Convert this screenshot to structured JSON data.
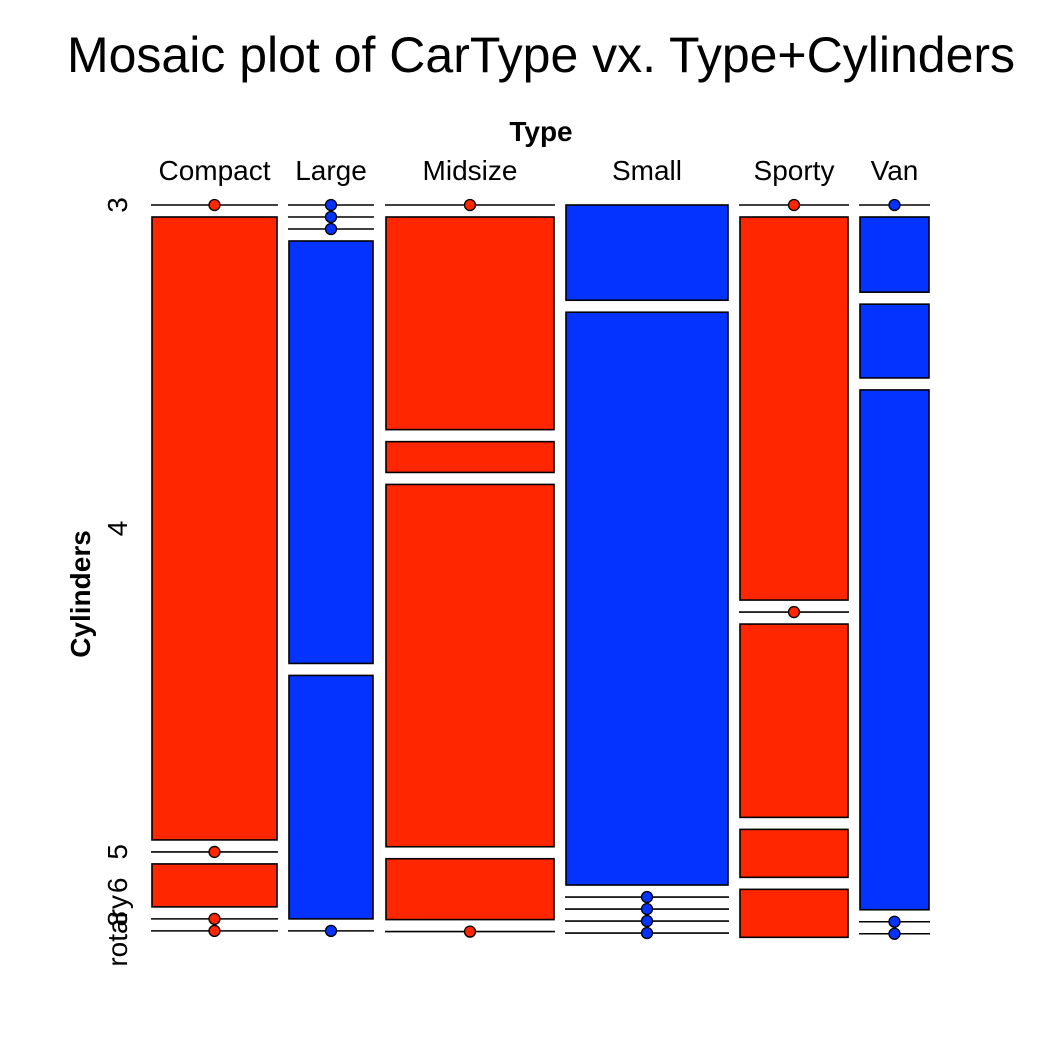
{
  "chart_data": {
    "type": "mosaic",
    "title": "Mosaic plot of CarType vx. Type+Cylinders",
    "xlabel": "Type",
    "ylabel": "Cylinders",
    "colors": {
      "red": "#ff2600",
      "blue": "#0433ff"
    },
    "types": [
      {
        "name": "Compact",
        "color": "red",
        "cells": [
          {
            "cyl": "3",
            "value": 0
          },
          {
            "cyl": "4",
            "value": 0.87
          },
          {
            "cyl": "5",
            "value": 0
          },
          {
            "cyl": "6",
            "value": 0.06
          },
          {
            "cyl": "8",
            "value": 0
          },
          {
            "cyl": "rotary",
            "value": 0
          }
        ]
      },
      {
        "name": "Large",
        "color": "blue",
        "cells": [
          {
            "cyl": "3",
            "value": 0
          },
          {
            "cyl": "4",
            "value": 0
          },
          {
            "cyl": "5",
            "value": 0
          },
          {
            "cyl": "6",
            "value": 0.59
          },
          {
            "cyl": "8",
            "value": 0.34
          },
          {
            "cyl": "rotary",
            "value": 0
          }
        ]
      },
      {
        "name": "Midsize",
        "color": "red",
        "cells": [
          {
            "cyl": "3",
            "value": 0
          },
          {
            "cyl": "4",
            "value": 0.297
          },
          {
            "cyl": "5",
            "value": 0.043
          },
          {
            "cyl": "6",
            "value": 0.506
          },
          {
            "cyl": "8",
            "value": 0.085
          },
          {
            "cyl": "rotary",
            "value": 0
          }
        ]
      },
      {
        "name": "Small",
        "color": "blue",
        "cells": [
          {
            "cyl": "3",
            "value": 0.133
          },
          {
            "cyl": "4",
            "value": 0.8
          },
          {
            "cyl": "5",
            "value": 0
          },
          {
            "cyl": "6",
            "value": 0
          },
          {
            "cyl": "8",
            "value": 0
          },
          {
            "cyl": "rotary",
            "value": 0
          }
        ]
      },
      {
        "name": "Sporty",
        "color": "red",
        "cells": [
          {
            "cyl": "3",
            "value": 0
          },
          {
            "cyl": "4",
            "value": 0.535
          },
          {
            "cyl": "5",
            "value": 0
          },
          {
            "cyl": "6",
            "value": 0.27
          },
          {
            "cyl": "8",
            "value": 0.067
          },
          {
            "cyl": "rotary",
            "value": 0.067
          }
        ]
      },
      {
        "name": "Van",
        "color": "blue",
        "cells": [
          {
            "cyl": "3",
            "value": 0
          },
          {
            "cyl": "4",
            "value": 0.105
          },
          {
            "cyl": "5",
            "value": 0.103
          },
          {
            "cyl": "6",
            "value": 0.726
          },
          {
            "cyl": "8",
            "value": 0
          },
          {
            "cyl": "rotary",
            "value": 0
          }
        ]
      }
    ],
    "y_tick_labels": [
      {
        "label": "3",
        "at": "3"
      },
      {
        "label": "4",
        "at": "4"
      },
      {
        "label": "5",
        "at": "5"
      },
      {
        "label": "6",
        "at": "6"
      },
      {
        "label": "8",
        "at": "8"
      },
      {
        "label": "rotary",
        "at": "rotary"
      }
    ]
  }
}
